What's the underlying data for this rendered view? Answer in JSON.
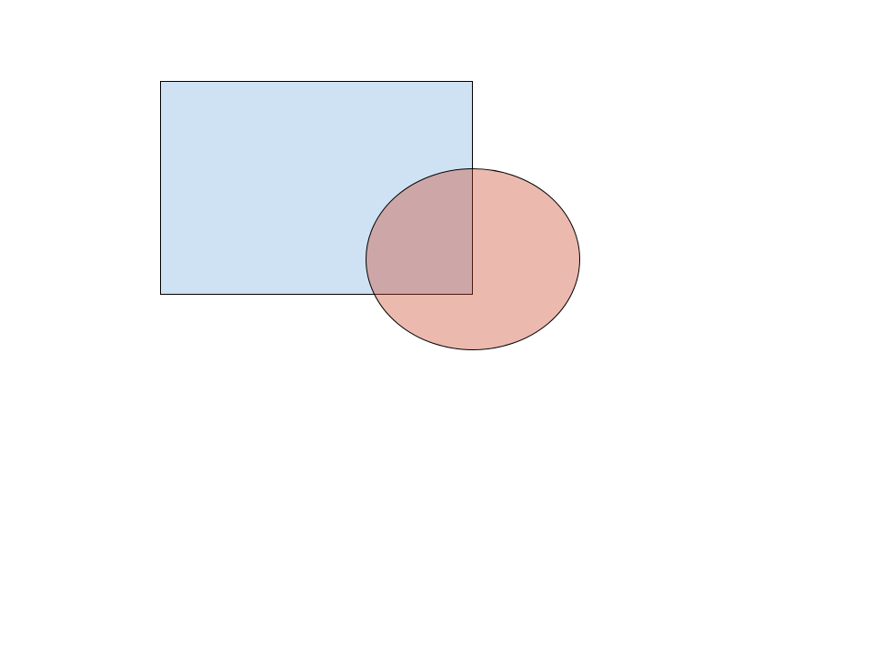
{
  "diagram": {
    "shapes": [
      {
        "id": "rectangle",
        "kind": "rectangle",
        "fill": "#cfe2f3",
        "fill_opacity": 1,
        "stroke": "#000000"
      },
      {
        "id": "ellipse",
        "kind": "ellipse",
        "fill": "#cc4125",
        "fill_opacity": 0.37,
        "stroke": "#000000"
      }
    ]
  }
}
